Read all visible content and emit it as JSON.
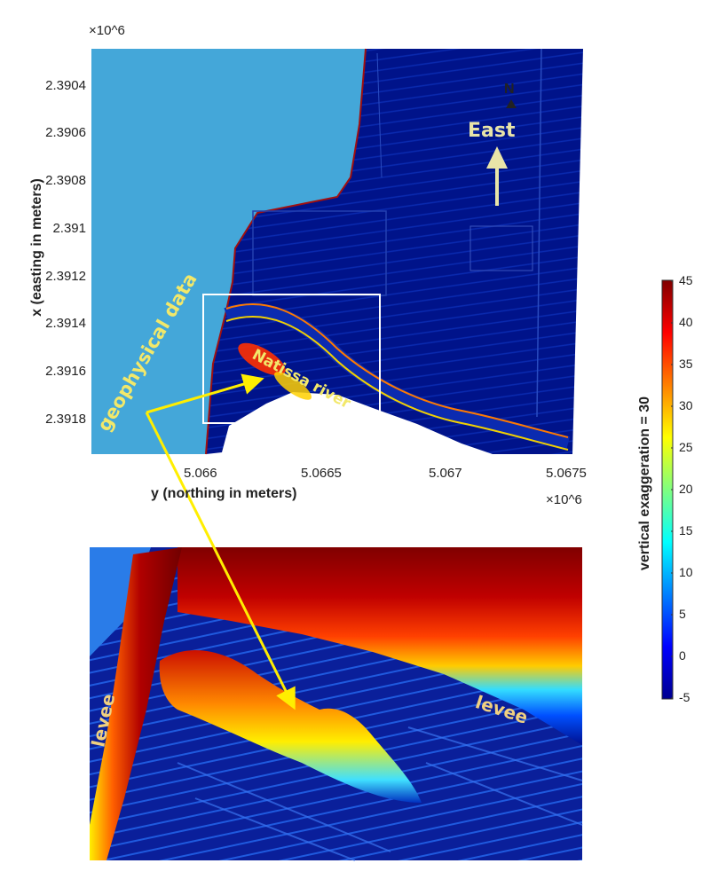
{
  "top_map": {
    "x_exponent": "×10^6",
    "y_exponent": "×10^6",
    "y_axis_title": "x (easting in meters)",
    "x_axis_title": "y (northing in meters)",
    "y_ticks": [
      "2.3904",
      "2.3906",
      "2.3908",
      "2.391",
      "2.3912",
      "2.3914",
      "2.3916",
      "2.3918"
    ],
    "x_ticks": [
      "5.066",
      "5.0665",
      "5.067",
      "5.0675"
    ],
    "north_label": "N",
    "east_label": "East",
    "river_label": "Natissa river",
    "geophysical_label": "geophysical data"
  },
  "bottom_view": {
    "levee_left": "levee",
    "levee_right": "levee"
  },
  "colorbar": {
    "title": "vertical exaggeration = 30",
    "ticks": [
      "45",
      "40",
      "35",
      "30",
      "25",
      "20",
      "15",
      "10",
      "5",
      "0",
      "-5"
    ],
    "colormap": [
      "#00008f",
      "#0000ff",
      "#00ffff",
      "#ffff00",
      "#ff0000",
      "#800000"
    ]
  }
}
